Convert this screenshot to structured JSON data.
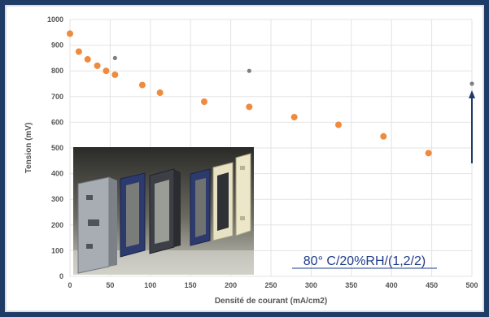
{
  "chart_data": {
    "type": "scatter",
    "xlabel": "Densité de courant (mA/cm2)",
    "ylabel": "Tension (mV)",
    "xlim": [
      0,
      500
    ],
    "ylim": [
      0,
      1000
    ],
    "x_ticks": [
      "0",
      "50",
      "100",
      "150",
      "200",
      "250",
      "300",
      "350",
      "400",
      "450",
      "500"
    ],
    "y_ticks": [
      "0",
      "100",
      "200",
      "300",
      "400",
      "500",
      "600",
      "700",
      "800",
      "900",
      "1000"
    ],
    "grid": true,
    "annotation": "80°  C/20%RH/(1,2/2)",
    "series": [
      {
        "color": "#f08a3c",
        "points": [
          {
            "x": 0,
            "y": 945
          },
          {
            "x": 11,
            "y": 875
          },
          {
            "x": 22,
            "y": 845
          },
          {
            "x": 34,
            "y": 820
          },
          {
            "x": 45,
            "y": 800
          },
          {
            "x": 56,
            "y": 785
          },
          {
            "x": 90,
            "y": 745
          },
          {
            "x": 112,
            "y": 715
          },
          {
            "x": 167,
            "y": 680
          },
          {
            "x": 223,
            "y": 660
          },
          {
            "x": 279,
            "y": 620
          },
          {
            "x": 334,
            "y": 590
          },
          {
            "x": 390,
            "y": 545
          },
          {
            "x": 446,
            "y": 480
          }
        ]
      },
      {
        "color": "#7f7f7f",
        "points": [
          {
            "x": 56,
            "y": 850
          },
          {
            "x": 223,
            "y": 800
          },
          {
            "x": 500,
            "y": 750
          }
        ]
      }
    ]
  },
  "colors": {
    "arrow": "#1f3c66",
    "annotation": "#1f3c8a",
    "grid": "#e3e3e3"
  },
  "inset": {
    "kind": "photo-illustration",
    "subject": "fuel-cell stack plates"
  }
}
